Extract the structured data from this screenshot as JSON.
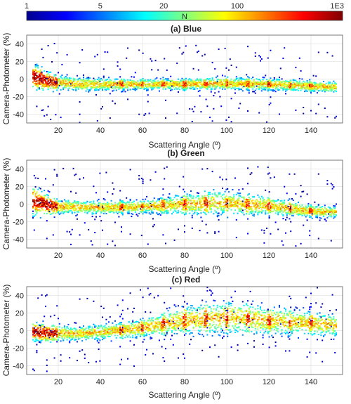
{
  "colorbar": {
    "label": "N",
    "ticks": [
      {
        "value": 1,
        "label": "1"
      },
      {
        "value": 5,
        "label": "5"
      },
      {
        "value": 20,
        "label": "20"
      },
      {
        "value": 100,
        "label": "100"
      },
      {
        "value": 1000,
        "label": "1E3"
      }
    ],
    "range": [
      1,
      1000
    ],
    "scale": "log",
    "colormap": "jet"
  },
  "chart_data": [
    {
      "type": "heatmap",
      "title": "(a) Blue",
      "xlabel": "Scattering Angle (º)",
      "ylabel": "Camera-Photometer (%)",
      "xlim": [
        5,
        155
      ],
      "ylim": [
        -50,
        50
      ],
      "xticks": [
        20,
        40,
        60,
        80,
        100,
        120,
        140
      ],
      "yticks": [
        -40,
        -20,
        0,
        20,
        40
      ],
      "grid": true,
      "ridge": [
        [
          8,
          3
        ],
        [
          12,
          0
        ],
        [
          15,
          -2
        ],
        [
          20,
          -4
        ],
        [
          30,
          -6
        ],
        [
          40,
          -6
        ],
        [
          60,
          -6
        ],
        [
          80,
          -6
        ],
        [
          100,
          -5
        ],
        [
          120,
          -6
        ],
        [
          140,
          -8
        ],
        [
          150,
          -9
        ]
      ],
      "spread": [
        [
          8,
          14
        ],
        [
          20,
          8
        ],
        [
          60,
          6
        ],
        [
          100,
          7
        ],
        [
          150,
          6
        ]
      ],
      "outlier_rate": 0.06,
      "stripes": [
        50,
        60,
        70,
        80,
        90,
        100,
        110,
        120,
        130,
        140
      ]
    },
    {
      "type": "heatmap",
      "title": "(b) Green",
      "xlabel": "Scattering Angle (º)",
      "ylabel": "Camera-Photometer (%)",
      "xlim": [
        5,
        155
      ],
      "ylim": [
        -50,
        50
      ],
      "xticks": [
        20,
        40,
        60,
        80,
        100,
        120,
        140
      ],
      "yticks": [
        -40,
        -20,
        0,
        20,
        40
      ],
      "grid": true,
      "ridge": [
        [
          8,
          4
        ],
        [
          12,
          1
        ],
        [
          15,
          -1
        ],
        [
          20,
          -3
        ],
        [
          40,
          -4
        ],
        [
          60,
          -3
        ],
        [
          80,
          0
        ],
        [
          95,
          2
        ],
        [
          100,
          1
        ],
        [
          120,
          -2
        ],
        [
          130,
          -5
        ],
        [
          140,
          -8
        ],
        [
          150,
          -9
        ]
      ],
      "spread": [
        [
          8,
          16
        ],
        [
          20,
          8
        ],
        [
          60,
          7
        ],
        [
          90,
          14
        ],
        [
          110,
          12
        ],
        [
          140,
          7
        ],
        [
          150,
          6
        ]
      ],
      "outlier_rate": 0.06,
      "stripes": [
        50,
        60,
        70,
        80,
        90,
        100,
        110,
        120,
        130,
        140
      ]
    },
    {
      "type": "heatmap",
      "title": "(c) Red",
      "xlabel": "Scattering Angle (º)",
      "ylabel": "Camera-Photometer (%)",
      "xlim": [
        5,
        155
      ],
      "ylim": [
        -50,
        50
      ],
      "xticks": [
        20,
        40,
        60,
        80,
        100,
        120,
        140
      ],
      "yticks": [
        -40,
        -20,
        0,
        20,
        40
      ],
      "grid": true,
      "ridge": [
        [
          8,
          -1
        ],
        [
          15,
          -3
        ],
        [
          30,
          -3
        ],
        [
          50,
          0
        ],
        [
          60,
          3
        ],
        [
          80,
          12
        ],
        [
          100,
          15
        ],
        [
          120,
          12
        ],
        [
          140,
          8
        ],
        [
          150,
          6
        ]
      ],
      "spread": [
        [
          8,
          10
        ],
        [
          30,
          8
        ],
        [
          60,
          10
        ],
        [
          80,
          16
        ],
        [
          100,
          18
        ],
        [
          120,
          16
        ],
        [
          150,
          12
        ]
      ],
      "outlier_rate": 0.07,
      "stripes": [
        50,
        60,
        70,
        80,
        90,
        100,
        110,
        120,
        130,
        140
      ]
    }
  ]
}
